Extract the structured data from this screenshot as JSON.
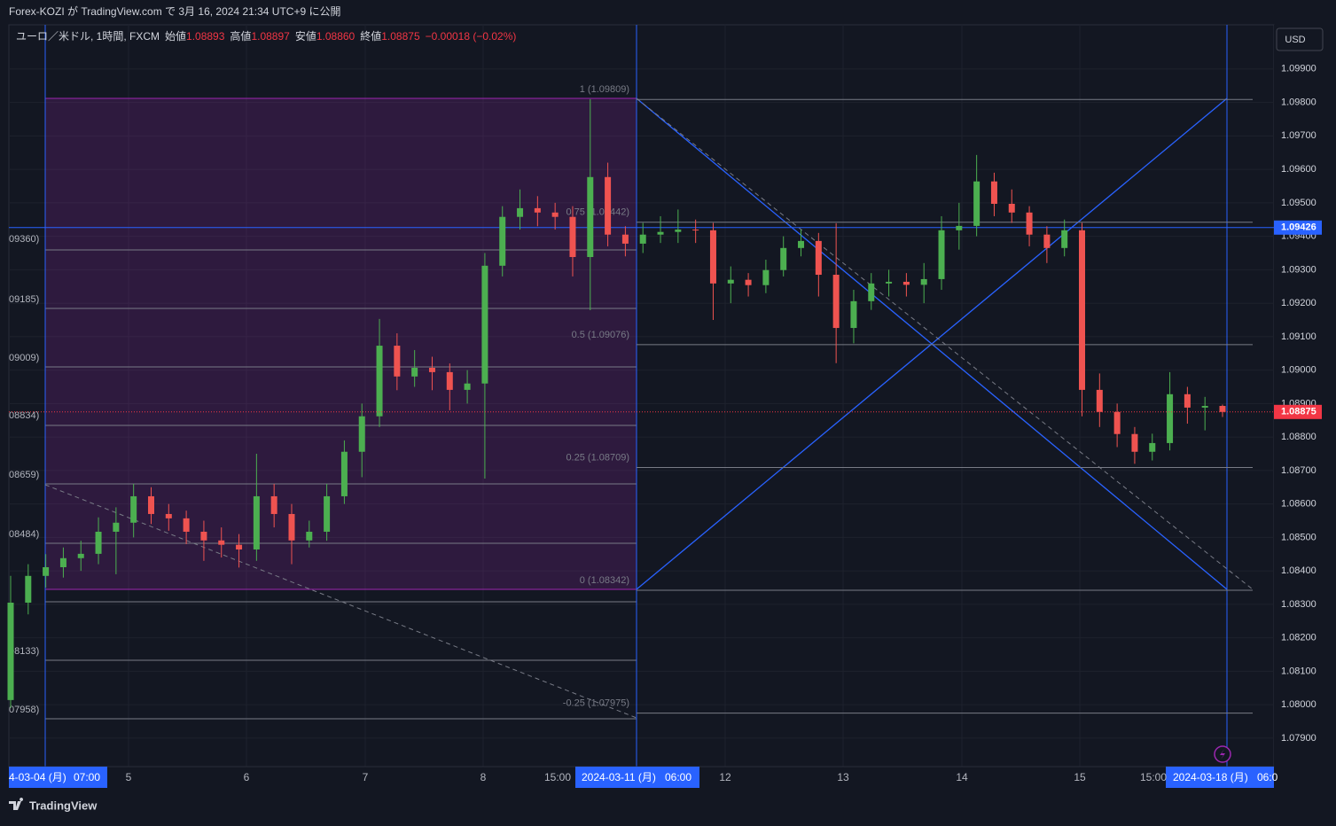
{
  "header": {
    "published": "Forex-KOZI が TradingView.com で 3月 16, 2024 21:34 UTC+9 に公開",
    "logo": "TradingView",
    "currency": "USD"
  },
  "chart_data": {
    "type": "candlestick",
    "legend": {
      "symbol": "ユーロ／米ドル, 1時間, FXCM",
      "open_label": "始値",
      "open": "1.08893",
      "high_label": "高値",
      "high": "1.08897",
      "low_label": "安値",
      "low": "1.08860",
      "close_label": "終値",
      "close": "1.08875",
      "change": "−0.00018 (−0.02%)"
    },
    "up_color": "#4caf50",
    "down_color": "#ef5350",
    "grid": true,
    "ylim": [
      1.07815,
      1.10032
    ],
    "yticks": [
      {
        "value": 1.079,
        "label": "1.07900"
      },
      {
        "value": 1.08,
        "label": "1.08000"
      },
      {
        "value": 1.081,
        "label": "1.08100"
      },
      {
        "value": 1.082,
        "label": "1.08200"
      },
      {
        "value": 1.083,
        "label": "1.08300"
      },
      {
        "value": 1.084,
        "label": "1.08400"
      },
      {
        "value": 1.085,
        "label": "1.08500"
      },
      {
        "value": 1.086,
        "label": "1.08600"
      },
      {
        "value": 1.087,
        "label": "1.08700"
      },
      {
        "value": 1.088,
        "label": "1.08800"
      },
      {
        "value": 1.089,
        "label": "1.08900"
      },
      {
        "value": 1.09,
        "label": "1.09000"
      },
      {
        "value": 1.091,
        "label": "1.09100"
      },
      {
        "value": 1.092,
        "label": "1.09200"
      },
      {
        "value": 1.093,
        "label": "1.09300"
      },
      {
        "value": 1.094,
        "label": "1.09400"
      },
      {
        "value": 1.095,
        "label": "1.09500"
      },
      {
        "value": 1.096,
        "label": "1.09600"
      },
      {
        "value": 1.097,
        "label": "1.09700"
      },
      {
        "value": 1.098,
        "label": "1.09800"
      },
      {
        "value": 1.099,
        "label": "1.09900"
      }
    ],
    "open": [
      1.08014,
      1.08305,
      1.08385,
      1.08411,
      1.08438,
      1.08451,
      1.08517,
      1.08544,
      1.08623,
      1.0857,
      1.08557,
      1.08517,
      1.08491,
      1.08478,
      1.08464,
      1.08623,
      1.0857,
      1.08491,
      1.08517,
      1.08623,
      1.08756,
      1.08862,
      1.09073,
      1.08981,
      1.09007,
      1.08994,
      1.08941,
      1.0896,
      1.09312,
      1.09458,
      1.09484,
      1.09471,
      1.09458,
      1.09338,
      1.09577,
      1.09405,
      1.09378,
      1.09405,
      1.09413,
      1.0942,
      1.09418,
      1.09259,
      1.0927,
      1.09254,
      1.09299,
      1.09365,
      1.09386,
      1.09285,
      1.09126,
      1.09206,
      1.09259,
      1.09264,
      1.09255,
      1.09272,
      1.09418,
      1.09431,
      1.09564,
      1.09497,
      1.09471,
      1.09405,
      1.09365,
      1.09418,
      1.08941,
      1.08875,
      1.08809,
      1.08756,
      1.08782,
      1.08928,
      1.08888,
      1.08893
    ],
    "high": [
      1.08385,
      1.0842,
      1.0845,
      1.0847,
      1.0849,
      1.0856,
      1.0859,
      1.0866,
      1.0865,
      1.086,
      1.0858,
      1.0855,
      1.0853,
      1.0851,
      1.0875,
      1.0866,
      1.086,
      1.0855,
      1.0866,
      1.0879,
      1.089,
      1.09153,
      1.0911,
      1.0906,
      1.0904,
      1.0902,
      1.09,
      1.0935,
      1.0949,
      1.0954,
      1.0952,
      1.095,
      1.0949,
      1.0981,
      1.0962,
      1.0943,
      1.0944,
      1.0946,
      1.0948,
      1.0945,
      1.0944,
      1.0931,
      1.0929,
      1.0933,
      1.094,
      1.0942,
      1.0941,
      1.09439,
      1.0924,
      1.0929,
      1.093,
      1.0929,
      1.0932,
      1.0946,
      1.095,
      1.09643,
      1.0959,
      1.0954,
      1.0949,
      1.0943,
      1.0945,
      1.0944,
      1.0899,
      1.089,
      1.0883,
      1.0881,
      1.08994,
      1.0895,
      1.0892,
      1.08897
    ],
    "low": [
      1.0799,
      1.0827,
      1.0835,
      1.0838,
      1.084,
      1.0842,
      1.0839,
      1.085,
      1.0854,
      1.0852,
      1.0848,
      1.0843,
      1.0844,
      1.0841,
      1.0843,
      1.0853,
      1.0842,
      1.0847,
      1.0849,
      1.086,
      1.0868,
      1.0883,
      1.0894,
      1.0895,
      1.0894,
      1.0888,
      1.089,
      1.08676,
      1.0928,
      1.0942,
      1.0943,
      1.0942,
      1.0928,
      1.09179,
      1.0937,
      1.0934,
      1.0935,
      1.0938,
      1.0938,
      1.0938,
      1.0915,
      1.092,
      1.0922,
      1.0923,
      1.0928,
      1.0934,
      1.0922,
      1.09021,
      1.0908,
      1.0918,
      1.0922,
      1.0922,
      1.092,
      1.0924,
      1.0936,
      1.094,
      1.0946,
      1.0944,
      1.0937,
      1.0932,
      1.0934,
      1.08862,
      1.0883,
      1.0877,
      1.0872,
      1.0873,
      1.0876,
      1.0884,
      1.0882,
      1.0886
    ],
    "close": [
      1.08305,
      1.08385,
      1.08411,
      1.08438,
      1.08451,
      1.08517,
      1.08544,
      1.08623,
      1.0857,
      1.08557,
      1.08517,
      1.08491,
      1.08478,
      1.08464,
      1.08623,
      1.0857,
      1.08491,
      1.08517,
      1.08623,
      1.08756,
      1.08862,
      1.09073,
      1.08981,
      1.09007,
      1.08994,
      1.08941,
      1.0896,
      1.09312,
      1.09458,
      1.09484,
      1.09471,
      1.09458,
      1.09338,
      1.09577,
      1.09405,
      1.09378,
      1.09405,
      1.09413,
      1.0942,
      1.09418,
      1.09259,
      1.0927,
      1.09254,
      1.09299,
      1.09365,
      1.09386,
      1.09285,
      1.09126,
      1.09206,
      1.09259,
      1.09264,
      1.09255,
      1.09272,
      1.09418,
      1.09431,
      1.09564,
      1.09497,
      1.09471,
      1.09405,
      1.09365,
      1.09418,
      1.08941,
      1.08875,
      1.08809,
      1.08756,
      1.08782,
      1.08928,
      1.08888,
      1.08893,
      1.08875
    ],
    "last_price": {
      "value": 1.08875,
      "label": "1.08875",
      "color": "#f23645"
    },
    "hline": {
      "value": 1.09426,
      "label": "1.09426",
      "color": "#2962ff"
    },
    "fib": [
      {
        "value": 1.09809,
        "label": "1 (1.09809)"
      },
      {
        "value": 1.09442,
        "label": "0.75 (1.09442)"
      },
      {
        "value": 1.09076,
        "label": "0.5 (1.09076)"
      },
      {
        "value": 1.08709,
        "label": "0.25 (1.08709)"
      },
      {
        "value": 1.08342,
        "label": "0 (1.08342)"
      },
      {
        "value": 1.07975,
        "label": "-0.25 (1.07975)"
      }
    ],
    "left_fib_labels": [
      "09360)",
      "09185)",
      "09009)",
      "08834)",
      "08659)",
      "08484)",
      "08133)",
      "07958)"
    ],
    "x_labels": [
      "4-03-04 (月)",
      "07:00",
      "5",
      "6",
      "7",
      "8",
      "15:00",
      "2024-03-11 (月)",
      "06:00",
      "12",
      "13",
      "14",
      "15",
      "15:00",
      "2024-03-18 (月)",
      "06:0"
    ]
  }
}
